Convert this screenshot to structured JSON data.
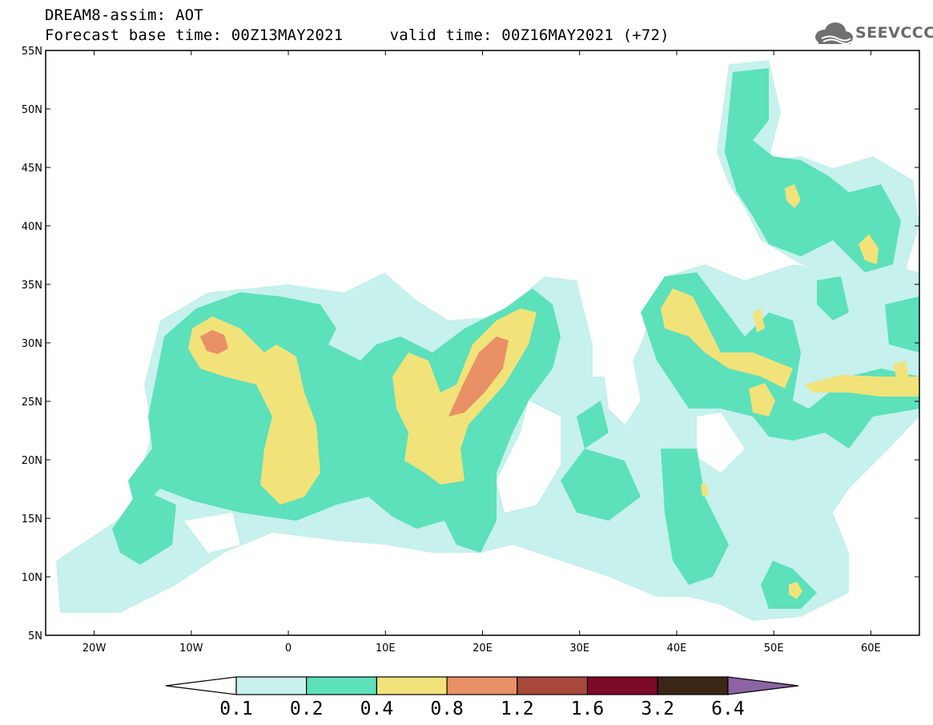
{
  "header": {
    "line1": "DREAM8-assim: AOT",
    "line2": "Forecast base time: 00Z13MAY2021     valid time: 00Z16MAY2021 (+72)"
  },
  "logo": {
    "text": "SEEVCCC",
    "icon": "cloud-icon"
  },
  "map": {
    "lon_range": [
      -25,
      65
    ],
    "lat_range": [
      5,
      55
    ],
    "lat_ticks": [
      "5N",
      "10N",
      "15N",
      "20N",
      "25N",
      "30N",
      "35N",
      "40N",
      "45N",
      "50N",
      "55N"
    ],
    "lon_ticks": [
      "20W",
      "10W",
      "0",
      "10E",
      "20E",
      "30E",
      "40E",
      "50E",
      "60E"
    ],
    "background": "#ffffff"
  },
  "colorbar": {
    "labels": [
      "0.1",
      "0.2",
      "0.4",
      "0.8",
      "1.2",
      "1.6",
      "3.2",
      "6.4"
    ],
    "colors": [
      "#ffffff",
      "#c6f1ec",
      "#5ce1bb",
      "#f2e27a",
      "#e99067",
      "#a8493c",
      "#7d0a27",
      "#3b2616",
      "#8c64a3"
    ]
  }
}
